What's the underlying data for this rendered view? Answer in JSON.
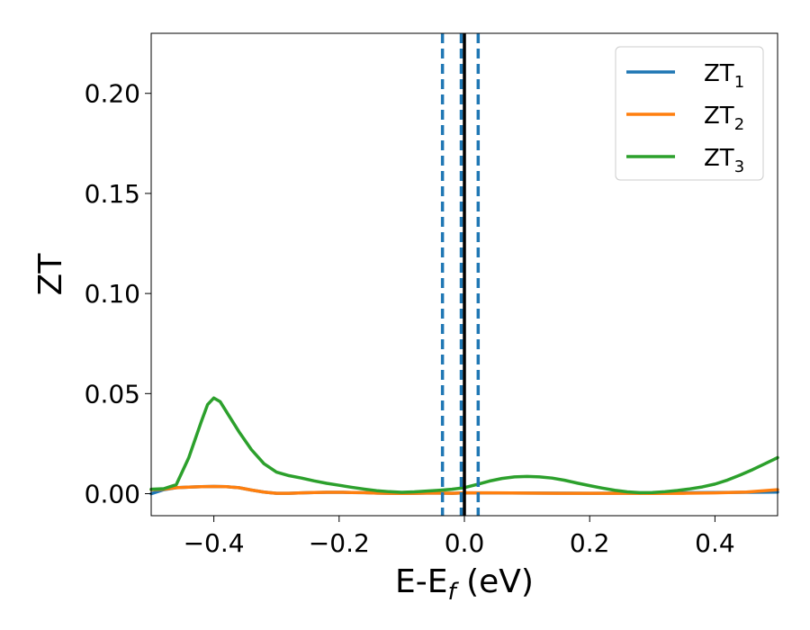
{
  "chart_data": {
    "type": "line",
    "title": "",
    "xlabel_main": "E-E",
    "xlabel_sub": "f",
    "xlabel_unit": " (eV)",
    "ylabel": "ZT",
    "xlim": [
      -0.5,
      0.5
    ],
    "ylim": [
      -0.011,
      0.23
    ],
    "xticks": [
      -0.4,
      -0.2,
      0.0,
      0.2,
      0.4
    ],
    "xtick_labels": [
      "−0.4",
      "−0.2",
      "0.0",
      "0.2",
      "0.4"
    ],
    "yticks": [
      0.0,
      0.05,
      0.1,
      0.15,
      0.2
    ],
    "ytick_labels": [
      "0.00",
      "0.05",
      "0.10",
      "0.15",
      "0.20"
    ],
    "grid": false,
    "legend_position": "top-right",
    "vlines": [
      {
        "x": -0.035,
        "style": "dashed",
        "color": "#1f77b4"
      },
      {
        "x": -0.005,
        "style": "dashed",
        "color": "#1f77b4"
      },
      {
        "x": 0.022,
        "style": "dashed",
        "color": "#1f77b4"
      },
      {
        "x": 0.0,
        "style": "solid",
        "color": "#000000"
      }
    ],
    "series": [
      {
        "name": "ZT",
        "sub": "1",
        "color": "#1f77b4",
        "x": [
          -0.5,
          -0.48,
          -0.46,
          -0.44,
          -0.42,
          -0.4,
          -0.38,
          -0.36,
          -0.34,
          -0.32,
          -0.3,
          -0.28,
          -0.26,
          -0.24,
          -0.22,
          -0.2,
          -0.18,
          -0.16,
          -0.14,
          -0.12,
          -0.1,
          -0.08,
          -0.06,
          -0.04,
          -0.02,
          0.0,
          0.1,
          0.2,
          0.3,
          0.4,
          0.5
        ],
        "values": [
          0.0,
          0.002,
          0.003,
          0.0033,
          0.0035,
          0.0036,
          0.0035,
          0.003,
          0.0018,
          0.0008,
          0.0002,
          0.0002,
          0.0004,
          0.0006,
          0.0007,
          0.0007,
          0.0006,
          0.0005,
          0.0003,
          0.0002,
          0.0001,
          0.0002,
          0.0003,
          0.0003,
          0.0002,
          0.0004,
          0.0003,
          0.0002,
          0.0003,
          0.0006,
          0.0008
        ]
      },
      {
        "name": "ZT",
        "sub": "2",
        "color": "#ff7f0e",
        "x": [
          -0.5,
          -0.48,
          -0.46,
          -0.44,
          -0.42,
          -0.4,
          -0.38,
          -0.36,
          -0.34,
          -0.32,
          -0.3,
          -0.28,
          -0.26,
          -0.24,
          -0.22,
          -0.2,
          -0.18,
          -0.16,
          -0.14,
          -0.12,
          -0.1,
          -0.08,
          -0.06,
          -0.04,
          -0.02,
          0.0,
          0.05,
          0.1,
          0.15,
          0.2,
          0.25,
          0.3,
          0.35,
          0.4,
          0.45,
          0.5
        ],
        "values": [
          0.002,
          0.0022,
          0.003,
          0.0033,
          0.0035,
          0.0036,
          0.0035,
          0.003,
          0.0018,
          0.0008,
          0.0002,
          0.0002,
          0.0004,
          0.0006,
          0.0007,
          0.0007,
          0.0006,
          0.0005,
          0.0003,
          0.0002,
          0.0001,
          0.0002,
          0.0003,
          0.0003,
          0.0002,
          0.0004,
          0.0004,
          0.0003,
          0.0002,
          0.0002,
          0.0002,
          0.0001,
          0.0002,
          0.0004,
          0.0008,
          0.002
        ]
      },
      {
        "name": "ZT",
        "sub": "3",
        "color": "#2ca02c",
        "x": [
          -0.5,
          -0.48,
          -0.46,
          -0.44,
          -0.42,
          -0.41,
          -0.4,
          -0.39,
          -0.38,
          -0.36,
          -0.34,
          -0.32,
          -0.3,
          -0.28,
          -0.26,
          -0.24,
          -0.22,
          -0.2,
          -0.18,
          -0.16,
          -0.14,
          -0.12,
          -0.1,
          -0.08,
          -0.06,
          -0.04,
          -0.02,
          0.0,
          0.02,
          0.04,
          0.06,
          0.08,
          0.1,
          0.12,
          0.14,
          0.16,
          0.18,
          0.2,
          0.22,
          0.24,
          0.26,
          0.28,
          0.3,
          0.32,
          0.34,
          0.36,
          0.38,
          0.4,
          0.42,
          0.44,
          0.46,
          0.48,
          0.5
        ],
        "values": [
          0.0022,
          0.0025,
          0.0045,
          0.018,
          0.036,
          0.0445,
          0.0478,
          0.046,
          0.041,
          0.031,
          0.022,
          0.015,
          0.0108,
          0.009,
          0.0078,
          0.0064,
          0.0052,
          0.0042,
          0.0032,
          0.0023,
          0.0015,
          0.001,
          0.0007,
          0.0009,
          0.0013,
          0.0017,
          0.0022,
          0.003,
          0.0046,
          0.0063,
          0.0076,
          0.0084,
          0.0086,
          0.0084,
          0.0078,
          0.0067,
          0.0053,
          0.004,
          0.0028,
          0.0017,
          0.0009,
          0.0005,
          0.0006,
          0.001,
          0.0016,
          0.0024,
          0.0034,
          0.0048,
          0.0068,
          0.0093,
          0.012,
          0.015,
          0.018
        ]
      }
    ]
  }
}
